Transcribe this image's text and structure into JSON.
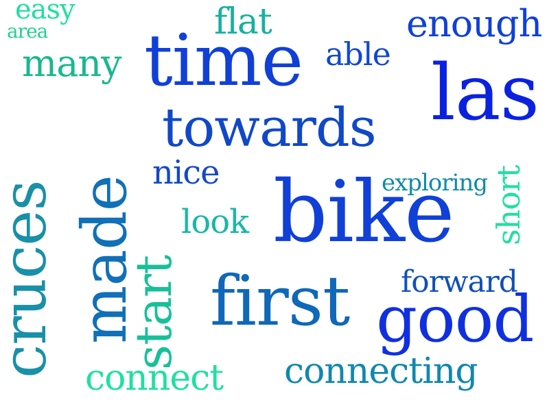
{
  "words": [
    {
      "text": "easy",
      "color": "#20e0a0"
    },
    {
      "text": "area",
      "color": "#22d090"
    },
    {
      "text": "many",
      "color": "#1ab890"
    },
    {
      "text": "flat",
      "color": "#18b0a0"
    },
    {
      "text": "enough",
      "color": "#1040d8"
    },
    {
      "text": "able",
      "color": "#1048d0"
    },
    {
      "text": "time",
      "color": "#1040d8"
    },
    {
      "text": "las",
      "color": "#0a22e0"
    },
    {
      "text": "towards",
      "color": "#1048c8"
    },
    {
      "text": "nice",
      "color": "#1448c8"
    },
    {
      "text": "exploring",
      "color": "#108aa8"
    },
    {
      "text": "bike",
      "color": "#1040d8"
    },
    {
      "text": "look",
      "color": "#18b8a8"
    },
    {
      "text": "forward",
      "color": "#1050b8"
    },
    {
      "text": "first",
      "color": "#1068b8"
    },
    {
      "text": "good",
      "color": "#1030e0"
    },
    {
      "text": "connect",
      "color": "#20e0a0"
    },
    {
      "text": "connecting",
      "color": "#1088b0"
    },
    {
      "text": "cruces",
      "color": "#1890a8"
    },
    {
      "text": "made",
      "color": "#1070b8"
    },
    {
      "text": "start",
      "color": "#18c098"
    },
    {
      "text": "short",
      "color": "#20e0a0"
    }
  ]
}
